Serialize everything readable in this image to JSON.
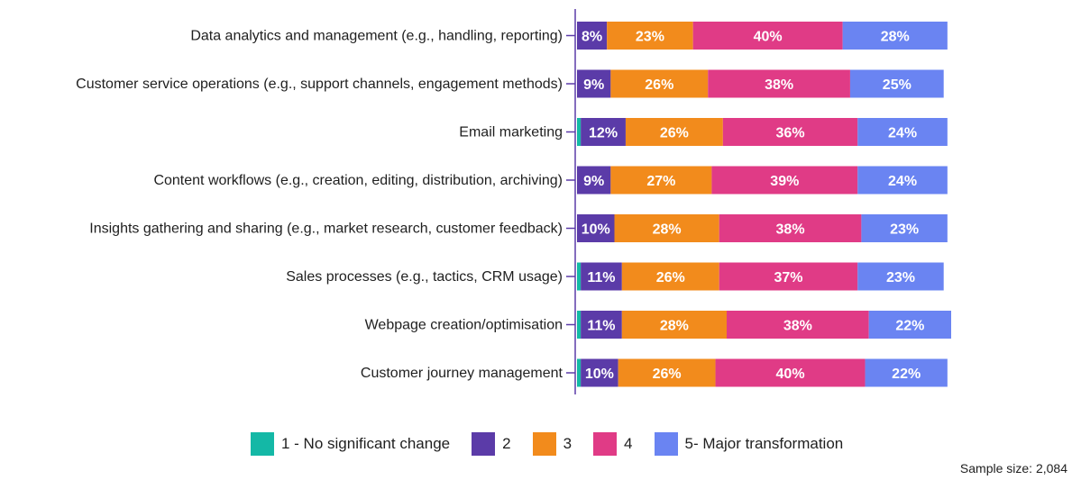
{
  "chart_data": {
    "type": "bar",
    "orientation": "horizontal",
    "stacked": true,
    "categories": [
      "Data analytics and management (e.g., handling, reporting)",
      "Customer service operations (e.g., support channels, engagement methods)",
      "Email marketing",
      "Content workflows (e.g., creation, editing, distribution, archiving)",
      "Insights gathering and sharing (e.g., market research, customer feedback)",
      "Sales processes (e.g., tactics, CRM usage)",
      "Webpage creation/optimisation",
      "Customer journey management"
    ],
    "series": [
      {
        "name": "1 - No significant change",
        "color": "#14b8a6",
        "values": [
          0,
          0,
          1,
          0,
          0,
          1,
          1,
          1
        ]
      },
      {
        "name": "2",
        "color": "#5b3ba8",
        "values": [
          8,
          9,
          12,
          9,
          10,
          11,
          11,
          10
        ]
      },
      {
        "name": "3",
        "color": "#f28b1c",
        "values": [
          23,
          26,
          26,
          27,
          28,
          26,
          28,
          26
        ]
      },
      {
        "name": "4",
        "color": "#e03b86",
        "values": [
          40,
          38,
          36,
          39,
          38,
          37,
          38,
          40
        ]
      },
      {
        "name": "5- Major transformation",
        "color": "#6a84f2",
        "values": [
          28,
          25,
          24,
          24,
          23,
          23,
          22,
          22
        ]
      }
    ],
    "label_min": 5,
    "value_suffix": "%",
    "xlim": [
      0,
      100
    ],
    "grid": false,
    "legend_position": "bottom"
  },
  "footnote": "Sample size: 2,084"
}
